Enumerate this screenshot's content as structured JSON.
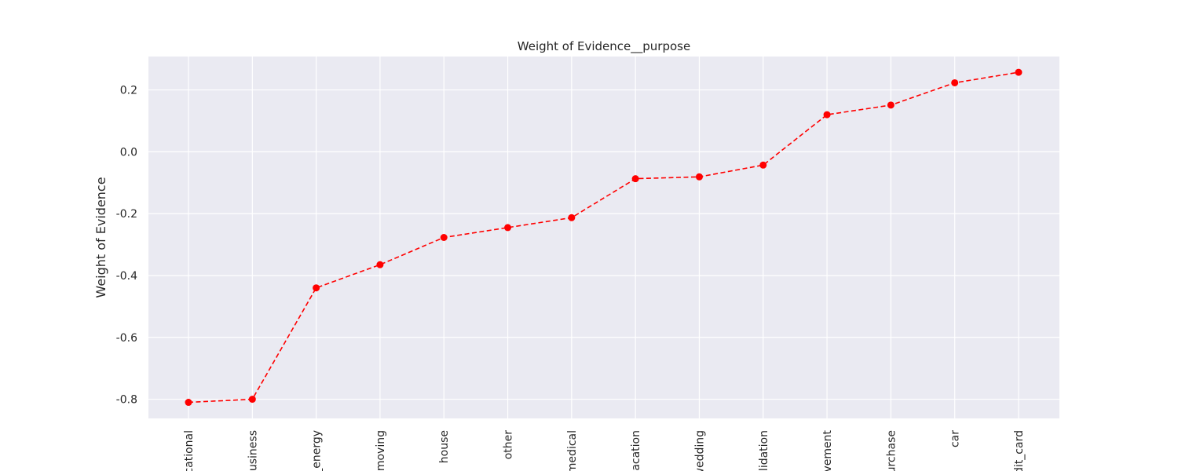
{
  "chart_data": {
    "type": "line",
    "title": "Weight of Evidence__purpose",
    "xlabel": "",
    "ylabel": "Weight of Evidence",
    "categories": [
      "cational",
      "usiness",
      "_energy",
      "moving",
      "house",
      "other",
      "medical",
      "vacation",
      "wedding",
      "olidation",
      "vement",
      "urchase",
      "car",
      "dit_card"
    ],
    "values": [
      -0.81,
      -0.8,
      -0.44,
      -0.365,
      -0.277,
      -0.245,
      -0.213,
      -0.087,
      -0.081,
      -0.043,
      0.12,
      0.151,
      0.223,
      0.257
    ],
    "yticks": [
      -0.8,
      -0.6,
      -0.4,
      -0.2,
      0.0,
      0.2
    ],
    "ytick_labels": [
      "-0.8",
      "-0.6",
      "-0.4",
      "-0.2",
      "0.0",
      "0.2"
    ],
    "ylim": [
      -0.862,
      0.308
    ],
    "grid": true,
    "line_style": "dashed",
    "marker": "circle",
    "colors": {
      "series": "#ff0000",
      "plot_background": "#eaeaf2",
      "grid": "#ffffff",
      "text": "#262626"
    }
  }
}
